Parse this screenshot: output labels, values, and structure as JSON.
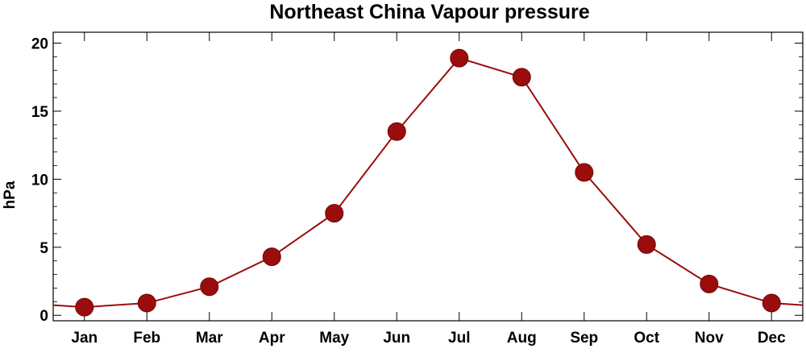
{
  "chart_data": {
    "type": "line",
    "title": "Northeast China Vapour pressure",
    "xlabel": "",
    "ylabel": "hPa",
    "categories": [
      "Jan",
      "Feb",
      "Mar",
      "Apr",
      "May",
      "Jun",
      "Jul",
      "Aug",
      "Sep",
      "Oct",
      "Nov",
      "Dec"
    ],
    "series": [
      {
        "values": [
          0.6,
          0.9,
          2.1,
          4.3,
          7.5,
          13.5,
          18.9,
          17.5,
          10.5,
          5.2,
          2.3,
          0.9
        ]
      }
    ],
    "x_range": [
      0.5,
      12.5
    ],
    "ylim": [
      -0.4,
      20.8
    ],
    "yticks": [
      0,
      5,
      10,
      15,
      20
    ],
    "edge_values": {
      "left": 0.75,
      "right": 0.75
    },
    "grid": false,
    "legend": "none",
    "line_color": "#9b0d0d",
    "marker_color": "#9b0d0d"
  }
}
